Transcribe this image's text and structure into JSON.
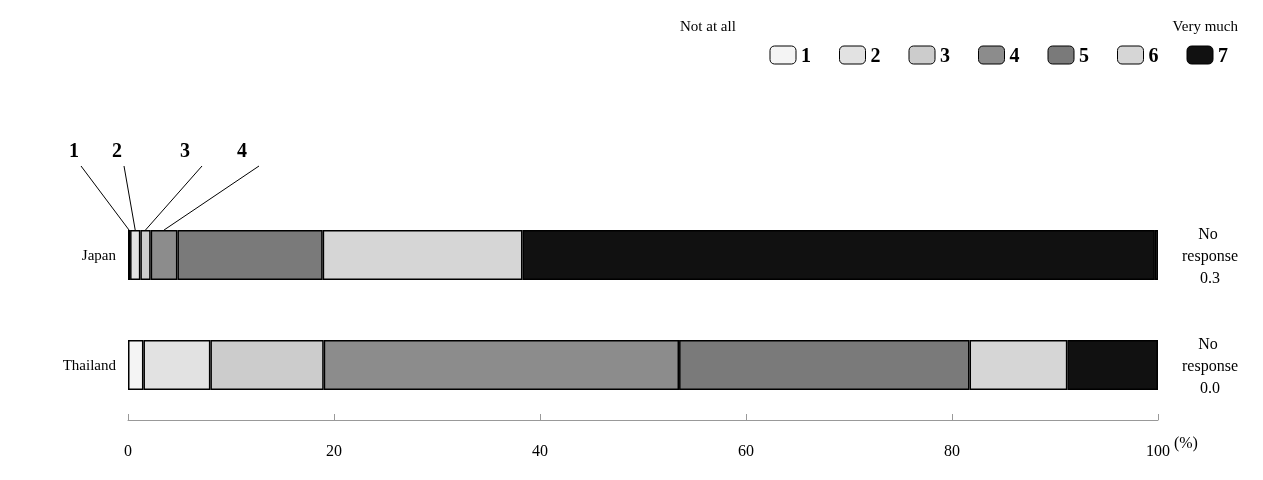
{
  "chart_data": {
    "type": "bar",
    "orientation": "horizontal",
    "stacked": true,
    "categories": [
      "Japan",
      "Thailand"
    ],
    "series": [
      {
        "name": "1",
        "color": "#f4f4f4",
        "values": [
          0.2,
          1.5
        ]
      },
      {
        "name": "2",
        "color": "#e2e2e2",
        "values": [
          1.0,
          6.5
        ]
      },
      {
        "name": "3",
        "color": "#cccccc",
        "values": [
          1.0,
          11.0
        ]
      },
      {
        "name": "4",
        "color": "#8c8c8c",
        "values": [
          2.6,
          34.5
        ]
      },
      {
        "name": "5",
        "color": "#7a7a7a",
        "values": [
          14.1,
          28.2
        ]
      },
      {
        "name": "6",
        "color": "#d6d6d6",
        "values": [
          19.4,
          9.5
        ]
      },
      {
        "name": "7",
        "color": "#111111",
        "values": [
          61.4,
          8.8
        ]
      },
      {
        "name": "No response",
        "color": "#ffffff",
        "values": [
          0.3,
          0.0
        ],
        "value_labels": [
          "0.3",
          "0.0"
        ]
      }
    ],
    "xlim": [
      0,
      100
    ],
    "xticks": [
      0,
      20,
      40,
      60,
      80,
      100
    ],
    "xlabel": "(%)",
    "grid": false,
    "legend": "top right",
    "annotations": [
      "Not at all",
      "Very much"
    ]
  }
}
